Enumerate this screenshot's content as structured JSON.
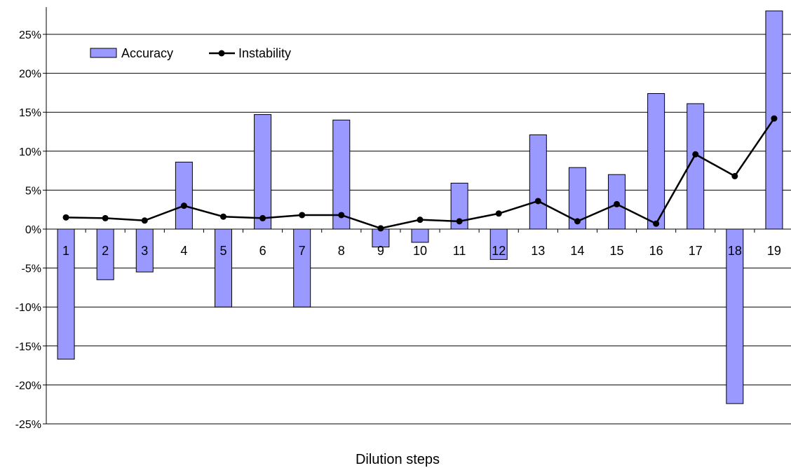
{
  "chart_data": {
    "type": "bar",
    "title": "",
    "xlabel": "Dilution steps",
    "ylabel": "",
    "ylim": [
      -25,
      28
    ],
    "y_ticks": [
      -25,
      -20,
      -15,
      -10,
      -5,
      0,
      5,
      10,
      15,
      20,
      25
    ],
    "y_tick_format": "percent",
    "grid": "horizontal",
    "legend_position": "top-left",
    "categories": [
      "1",
      "2",
      "3",
      "4",
      "5",
      "6",
      "7",
      "8",
      "9",
      "10",
      "11",
      "12",
      "13",
      "14",
      "15",
      "16",
      "17",
      "18",
      "19"
    ],
    "series": [
      {
        "name": "Accuracy",
        "kind": "bar",
        "color": "#9999ff",
        "values": [
          -16.7,
          -6.5,
          -5.5,
          8.6,
          -10.0,
          14.7,
          -10.0,
          14.0,
          -2.3,
          -1.7,
          5.9,
          -3.9,
          12.1,
          7.9,
          7.0,
          17.4,
          16.1,
          -22.4,
          28.0
        ]
      },
      {
        "name": "Instability",
        "kind": "line",
        "color": "#000000",
        "values": [
          1.5,
          1.4,
          1.1,
          3.0,
          1.6,
          1.4,
          1.8,
          1.8,
          0.1,
          1.2,
          1.0,
          2.0,
          3.6,
          1.0,
          3.2,
          0.7,
          9.6,
          6.8,
          14.2
        ]
      }
    ]
  }
}
